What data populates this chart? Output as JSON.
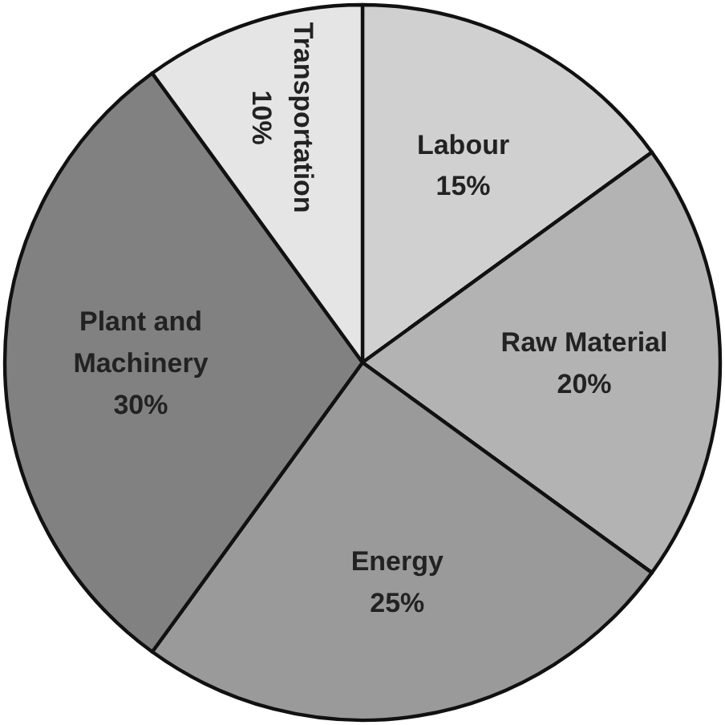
{
  "chart_data": {
    "type": "pie",
    "categories": [
      "Labour",
      "Raw Material",
      "Energy",
      "Plant and Machinery",
      "Transportation"
    ],
    "values": [
      15,
      20,
      25,
      30,
      10
    ],
    "colors": [
      "#d0d0d0",
      "#b3b3b3",
      "#9a9a9a",
      "#818181",
      "#e5e5e5"
    ],
    "value_labels": [
      "15%",
      "20%",
      "25%",
      "30%",
      "10%"
    ]
  }
}
